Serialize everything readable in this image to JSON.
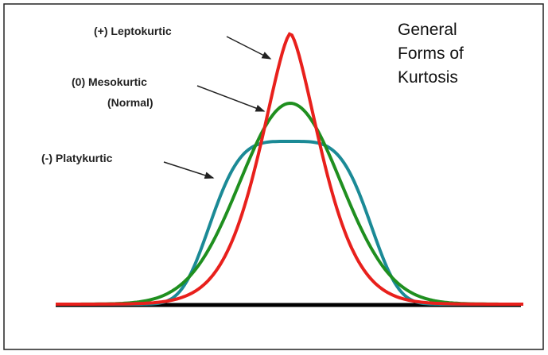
{
  "labels": {
    "leptokurtic": "(+) Leptokurtic",
    "mesokurtic": "(0) Mesokurtic",
    "mesokurtic_note": "(Normal)",
    "platykurtic": "(-) Platykurtic"
  },
  "title": [
    "General",
    "Forms of",
    "Kurtosis"
  ]
}
